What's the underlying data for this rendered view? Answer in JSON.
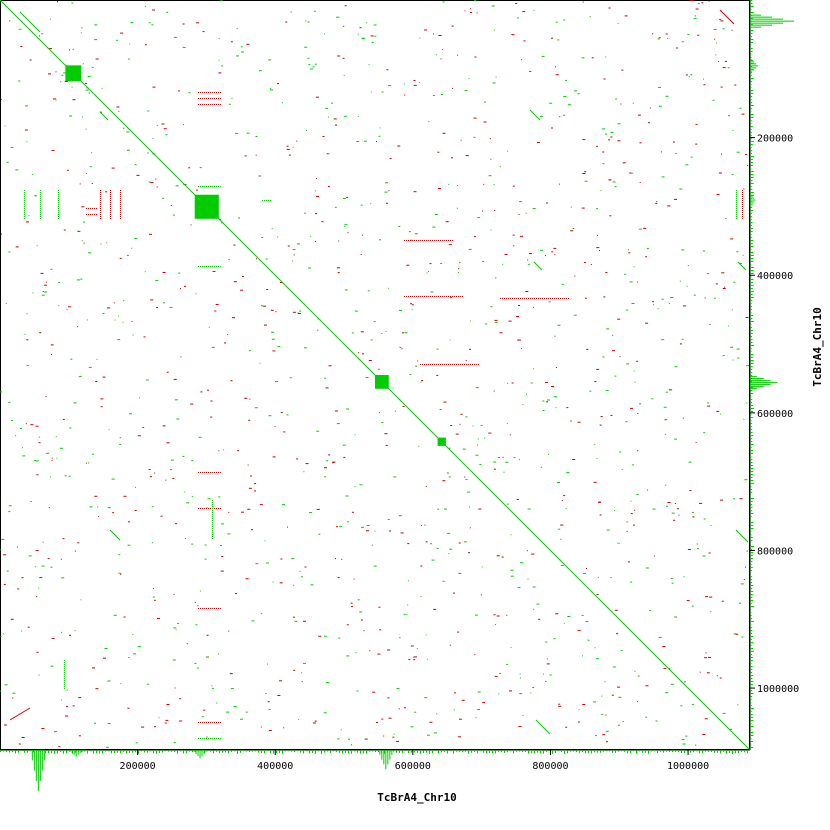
{
  "chart_data": {
    "type": "scatter",
    "xlabel": "TcBrA4_Chr10",
    "ylabel": "TcBrA4_Chr10",
    "xlim": [
      0,
      1090000
    ],
    "ylim": [
      0,
      1090000
    ],
    "x_ticks": [
      {
        "value": 200000,
        "label": "200000"
      },
      {
        "value": 400000,
        "label": "400000"
      },
      {
        "value": 600000,
        "label": "600000"
      },
      {
        "value": 800000,
        "label": "800000"
      },
      {
        "value": 1000000,
        "label": "1000000"
      }
    ],
    "y_ticks": [
      {
        "value": 200000,
        "label": "200000"
      },
      {
        "value": 400000,
        "label": "400000"
      },
      {
        "value": 600000,
        "label": "600000"
      },
      {
        "value": 800000,
        "label": "800000"
      },
      {
        "value": 1000000,
        "label": "1000000"
      }
    ],
    "series": [
      {
        "color": "#00cc00",
        "orientation": "forward"
      },
      {
        "color": "#cc0000",
        "orientation": "reverse"
      }
    ],
    "diagonal": {
      "x": [
        0,
        1090000
      ],
      "y": [
        0,
        1090000
      ]
    },
    "diagonal_blocks": [
      {
        "from": 95000,
        "to": 118000
      },
      {
        "from": 283000,
        "to": 318000
      },
      {
        "from": 545000,
        "to": 565000
      },
      {
        "from": 636000,
        "to": 648000
      }
    ],
    "histogram_peaks_y": [
      {
        "value": 30000,
        "length": 0.8
      },
      {
        "value": 555000,
        "length": 0.5
      },
      {
        "value": 95000,
        "length": 0.15
      },
      {
        "value": 290000,
        "length": 0.1
      }
    ],
    "histogram_peaks_x": [
      {
        "value": 55000,
        "length": 0.75
      },
      {
        "value": 560000,
        "length": 0.35
      },
      {
        "value": 290000,
        "length": 0.15
      },
      {
        "value": 110000,
        "length": 0.12
      }
    ]
  }
}
